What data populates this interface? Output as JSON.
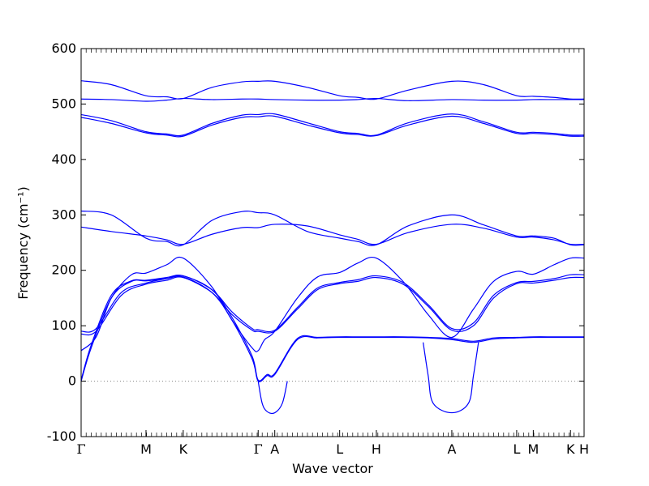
{
  "chart_data": {
    "type": "line",
    "xlabel": "Wave vector",
    "ylabel": "Frequency (cm⁻¹)",
    "ylim": [
      -100,
      600
    ],
    "yticks": [
      -100,
      0,
      100,
      200,
      300,
      400,
      500,
      600
    ],
    "xlim": [
      0,
      1
    ],
    "q_points": [
      {
        "label": "Γ",
        "x": 0.0
      },
      {
        "label": "M",
        "x": 0.129
      },
      {
        "label": "K",
        "x": 0.203
      },
      {
        "label": "Γ",
        "x": 0.352
      },
      {
        "label": "A",
        "x": 0.385
      },
      {
        "label": "L",
        "x": 0.514
      },
      {
        "label": "H",
        "x": 0.587
      },
      {
        "label": "A",
        "x": 0.737
      },
      {
        "label": "L",
        "x": 0.866
      },
      {
        "label": "M",
        "x": 0.899
      },
      {
        "label": "K",
        "x": 0.973
      },
      {
        "label": "H",
        "x": 1.0
      }
    ],
    "zero_line": {
      "y": 0,
      "style": "dotted",
      "color": "#808080"
    },
    "line_color": "#0000ff",
    "series": [
      {
        "x": [
          0.0,
          0.02,
          0.06,
          0.1,
          0.129,
          0.17,
          0.203,
          0.26,
          0.3,
          0.34,
          0.352,
          0.37,
          0.385,
          0.43,
          0.47,
          0.514,
          0.55,
          0.587,
          0.64,
          0.69,
          0.737,
          0.78,
          0.82,
          0.866,
          0.899,
          0.94,
          0.973,
          1.0
        ],
        "y": [
          0,
          60,
          150,
          180,
          181,
          185,
          188,
          160,
          110,
          40,
          0,
          10,
          12,
          75,
          78,
          79,
          79,
          79,
          79,
          78,
          75,
          70,
          76,
          78,
          79,
          79,
          79,
          79
        ]
      },
      {
        "x": [
          0.0,
          0.02,
          0.06,
          0.1,
          0.129,
          0.17,
          0.203,
          0.26,
          0.3,
          0.34,
          0.352,
          0.37,
          0.385,
          0.43,
          0.47,
          0.514,
          0.55,
          0.587,
          0.64,
          0.69,
          0.737,
          0.78,
          0.82,
          0.866,
          0.899,
          0.94,
          0.973,
          1.0
        ],
        "y": [
          2,
          65,
          155,
          181,
          182,
          187,
          190,
          165,
          115,
          45,
          2,
          12,
          14,
          77,
          79,
          80,
          80,
          80,
          80,
          79,
          77,
          72,
          78,
          79,
          80,
          80,
          80,
          80
        ]
      },
      {
        "x": [
          0.0,
          0.03,
          0.06,
          0.1,
          0.129,
          0.17,
          0.203,
          0.26,
          0.3,
          0.34,
          0.352,
          0.365,
          0.385,
          0.43,
          0.47,
          0.514,
          0.55,
          0.587,
          0.64,
          0.69,
          0.737,
          0.78,
          0.82,
          0.866,
          0.899,
          0.94,
          0.973,
          1.0
        ],
        "y": [
          55,
          80,
          150,
          192,
          195,
          210,
          222,
          170,
          110,
          60,
          55,
          75,
          90,
          150,
          188,
          196,
          213,
          222,
          180,
          120,
          79,
          130,
          180,
          198,
          193,
          210,
          222,
          222
        ]
      },
      {
        "x": [
          0.0,
          0.03,
          0.08,
          0.129,
          0.17,
          0.203,
          0.26,
          0.3,
          0.34,
          0.352,
          0.385,
          0.43,
          0.47,
          0.514,
          0.55,
          0.587,
          0.64,
          0.69,
          0.737,
          0.78,
          0.82,
          0.866,
          0.899,
          0.94,
          0.973,
          1.0
        ],
        "y": [
          85,
          90,
          155,
          175,
          182,
          187,
          160,
          120,
          92,
          90,
          90,
          130,
          165,
          176,
          180,
          187,
          175,
          135,
          92,
          100,
          150,
          176,
          177,
          182,
          187,
          187
        ]
      },
      {
        "x": [
          0.0,
          0.03,
          0.08,
          0.129,
          0.17,
          0.203,
          0.26,
          0.3,
          0.34,
          0.352,
          0.385,
          0.43,
          0.47,
          0.514,
          0.55,
          0.587,
          0.64,
          0.69,
          0.737,
          0.78,
          0.82,
          0.866,
          0.899,
          0.94,
          0.973,
          1.0
        ],
        "y": [
          90,
          95,
          160,
          177,
          185,
          190,
          165,
          125,
          95,
          93,
          92,
          133,
          168,
          178,
          183,
          190,
          178,
          138,
          95,
          105,
          155,
          178,
          180,
          185,
          192,
          192
        ]
      },
      {
        "x": [
          0.0,
          0.06,
          0.129,
          0.17,
          0.203,
          0.26,
          0.32,
          0.352,
          0.385,
          0.45,
          0.514,
          0.55,
          0.587,
          0.65,
          0.737,
          0.8,
          0.866,
          0.899,
          0.94,
          0.973,
          1.0
        ],
        "y": [
          307,
          300,
          258,
          252,
          246,
          290,
          306,
          304,
          300,
          270,
          258,
          252,
          246,
          280,
          300,
          282,
          262,
          262,
          258,
          246,
          246
        ]
      },
      {
        "x": [
          0.0,
          0.06,
          0.129,
          0.17,
          0.203,
          0.26,
          0.32,
          0.352,
          0.385,
          0.45,
          0.514,
          0.55,
          0.587,
          0.65,
          0.737,
          0.8,
          0.866,
          0.899,
          0.94,
          0.973,
          1.0
        ],
        "y": [
          278,
          270,
          262,
          255,
          247,
          265,
          277,
          277,
          283,
          280,
          264,
          256,
          247,
          268,
          283,
          276,
          260,
          260,
          255,
          247,
          247
        ]
      },
      {
        "x": [
          0.0,
          0.06,
          0.129,
          0.17,
          0.203,
          0.26,
          0.32,
          0.352,
          0.385,
          0.45,
          0.514,
          0.55,
          0.587,
          0.65,
          0.737,
          0.8,
          0.866,
          0.899,
          0.94,
          0.973,
          1.0
        ],
        "y": [
          476,
          465,
          448,
          444,
          442,
          462,
          476,
          477,
          478,
          462,
          448,
          445,
          443,
          462,
          478,
          465,
          447,
          447,
          445,
          442,
          442
        ]
      },
      {
        "x": [
          0.0,
          0.06,
          0.129,
          0.17,
          0.203,
          0.26,
          0.32,
          0.352,
          0.385,
          0.45,
          0.514,
          0.55,
          0.587,
          0.65,
          0.737,
          0.8,
          0.866,
          0.899,
          0.94,
          0.973,
          1.0
        ],
        "y": [
          481,
          470,
          450,
          446,
          444,
          465,
          480,
          481,
          482,
          466,
          450,
          447,
          444,
          466,
          482,
          468,
          449,
          449,
          447,
          444,
          444
        ]
      },
      {
        "x": [
          0.0,
          0.06,
          0.129,
          0.17,
          0.203,
          0.26,
          0.32,
          0.352,
          0.385,
          0.45,
          0.514,
          0.55,
          0.587,
          0.65,
          0.737,
          0.8,
          0.866,
          0.899,
          0.94,
          0.973,
          1.0
        ],
        "y": [
          509,
          508,
          505,
          507,
          510,
          508,
          509,
          509,
          508,
          507,
          507,
          508,
          510,
          506,
          508,
          507,
          507,
          508,
          508,
          508,
          508
        ]
      },
      {
        "x": [
          0.0,
          0.06,
          0.129,
          0.17,
          0.203,
          0.26,
          0.32,
          0.352,
          0.385,
          0.45,
          0.514,
          0.55,
          0.587,
          0.65,
          0.737,
          0.8,
          0.866,
          0.899,
          0.94,
          0.973,
          1.0
        ],
        "y": [
          542,
          535,
          515,
          513,
          510,
          530,
          540,
          541,
          541,
          530,
          515,
          512,
          509,
          525,
          541,
          535,
          515,
          514,
          512,
          509,
          509
        ]
      },
      {
        "x": [
          0.352,
          0.36,
          0.37,
          0.385,
          0.4,
          0.41
        ],
        "y": [
          0,
          -40,
          -55,
          -57,
          -40,
          0
        ]
      },
      {
        "x": [
          0.68,
          0.69,
          0.7,
          0.737,
          0.77,
          0.78,
          0.79
        ],
        "y": [
          70,
          10,
          -40,
          -57,
          -40,
          10,
          70
        ]
      }
    ]
  }
}
